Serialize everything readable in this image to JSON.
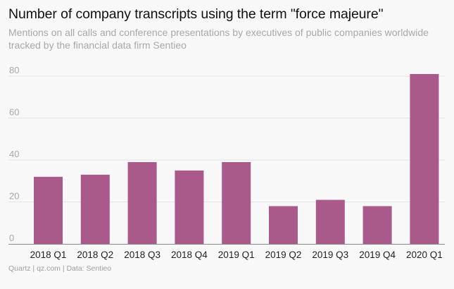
{
  "header": {
    "title": "Number of company transcripts using the term \"force majeure\"",
    "subtitle": "Mentions on all calls and conference presentations by executives of public companies worldwide tracked by the financial data firm Sentieo"
  },
  "footer": {
    "credit": "Quartz | qz.com | Data: Sentieo"
  },
  "colors": {
    "bar": "#a95a8a",
    "grid": "#e4e4e4",
    "axis": "#888888",
    "tick_label": "#a8a8a8",
    "category_label": "#222222"
  },
  "chart_data": {
    "type": "bar",
    "title": "Number of company transcripts using the term \"force majeure\"",
    "subtitle": "Mentions on all calls and conference presentations by executives of public companies worldwide tracked by the financial data firm Sentieo",
    "xlabel": "",
    "ylabel": "",
    "categories": [
      "2018 Q1",
      "2018 Q2",
      "2018 Q3",
      "2018 Q4",
      "2019 Q1",
      "2019 Q2",
      "2019 Q3",
      "2019 Q4",
      "2020 Q1"
    ],
    "values": [
      32,
      33,
      39,
      35,
      39,
      18,
      21,
      18,
      81
    ],
    "ylim": [
      0,
      80
    ],
    "yticks": [
      0,
      20,
      40,
      60,
      80
    ],
    "grid": true,
    "legend": "none"
  }
}
